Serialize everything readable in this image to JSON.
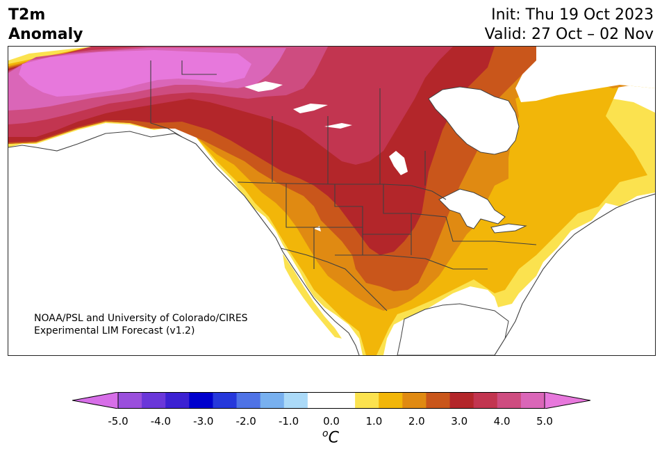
{
  "title": {
    "line1": "T2m",
    "line2": "Anomaly"
  },
  "forecast": {
    "init": "Init: Thu 19 Oct 2023",
    "valid": "Valid: 27 Oct – 02 Nov"
  },
  "credit": {
    "line1": "NOAA/PSL and University of Colorado/CIRES",
    "line2": "Experimental LIM Forecast (v1.2)"
  },
  "colorbar": {
    "unit_base": "C",
    "unit_sup": "o",
    "ticks": [
      "-5.0",
      "-4.0",
      "-3.0",
      "-2.0",
      "-1.0",
      "0.0",
      "1.0",
      "2.0",
      "3.0",
      "4.0",
      "5.0"
    ],
    "colors": [
      "#d76ee8",
      "#9a4fdc",
      "#6a37d9",
      "#3c21d2",
      "#0000cd",
      "#2638db",
      "#4f73e6",
      "#78b0ef",
      "#abdaf8",
      "#ffffff",
      "#ffffff",
      "#fbe24f",
      "#f2b609",
      "#e08a12",
      "#c9561b",
      "#b3262a",
      "#c23550",
      "#ce4c80",
      "#da66b8",
      "#e778dc"
    ]
  },
  "map_colors": {
    "ocean": "#ffffff",
    "c1": "#fbe24f",
    "c15": "#f2b609",
    "c2": "#e08a12",
    "c25": "#c9561b",
    "c3": "#b3262a",
    "c35": "#c23550",
    "c4": "#ce4c80",
    "c45": "#da66b8",
    "c5": "#e778dc",
    "border": "#404040"
  }
}
